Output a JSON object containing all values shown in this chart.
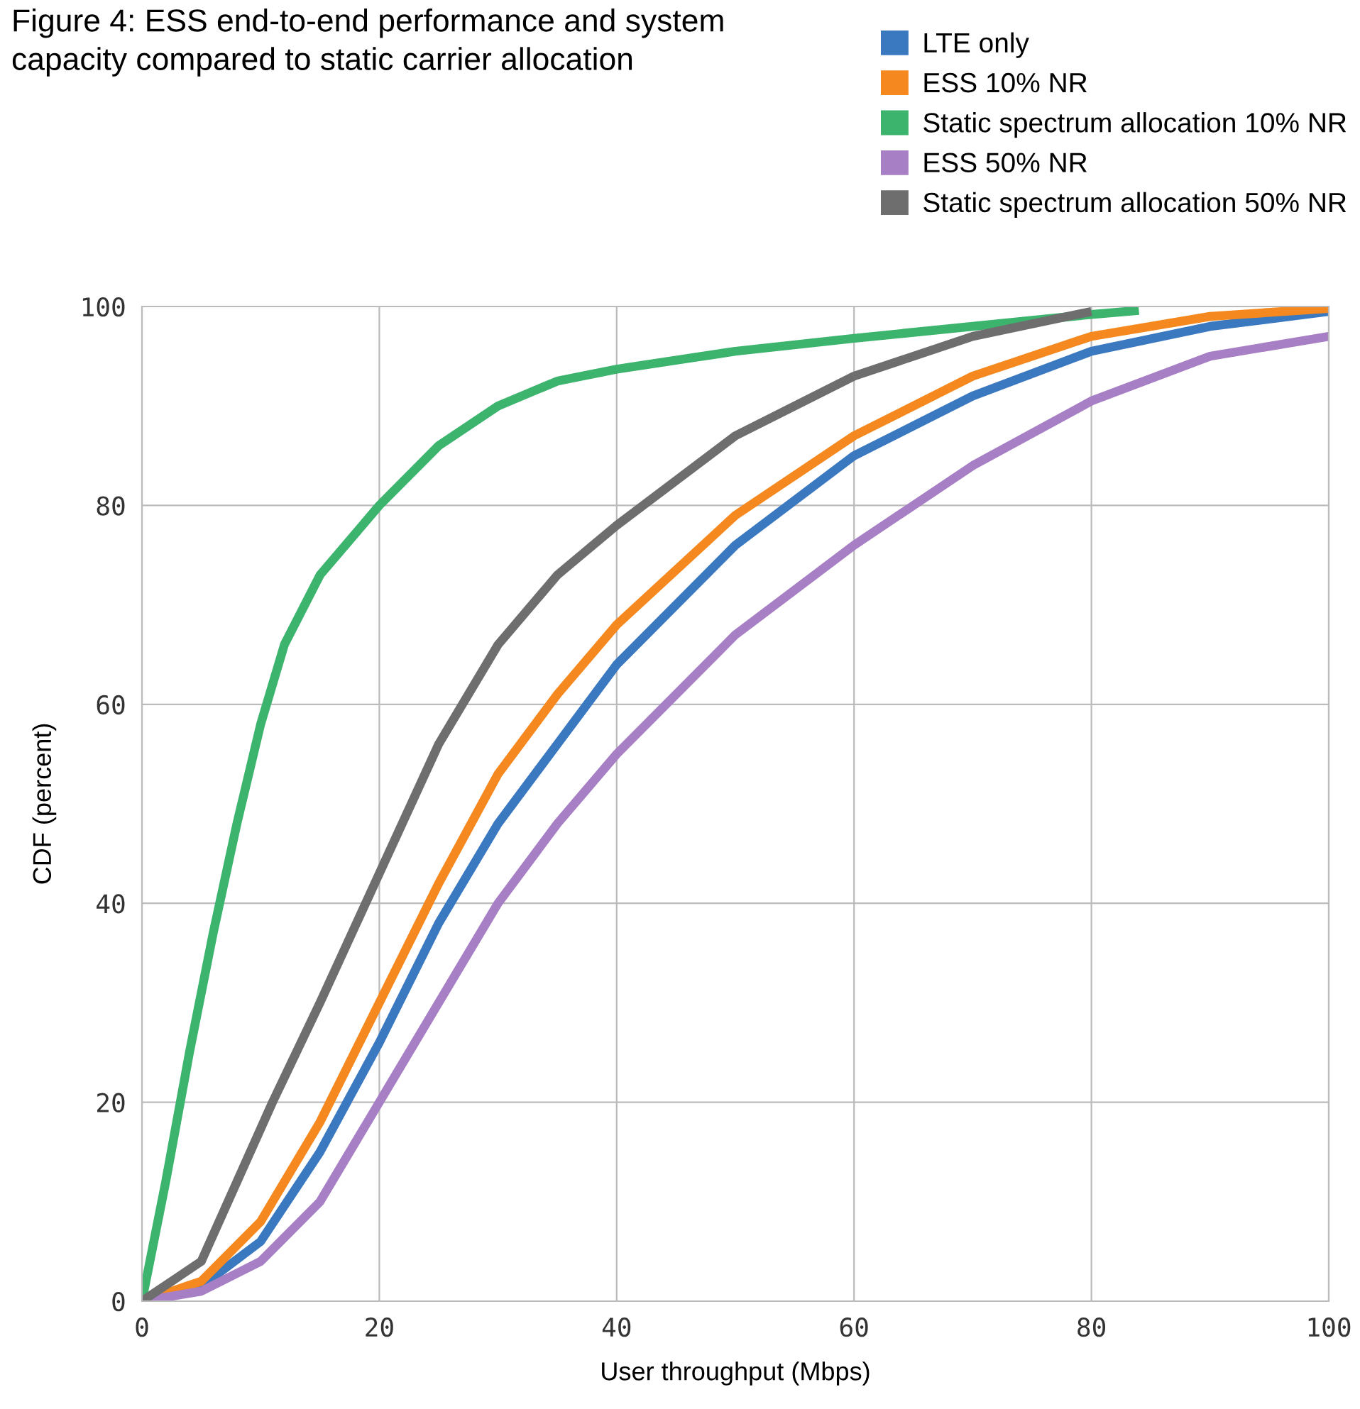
{
  "chart_data": {
    "type": "line",
    "title": "Figure 4: ESS end-to-end performance and system\ncapacity compared to static carrier allocation",
    "xlabel": "User throughput (Mbps)",
    "ylabel": "CDF (percent)",
    "xlim": [
      0,
      100
    ],
    "ylim": [
      0,
      100
    ],
    "xticks": [
      0,
      20,
      40,
      60,
      80,
      100
    ],
    "yticks": [
      0,
      20,
      40,
      60,
      80,
      100
    ],
    "grid": true,
    "legend": "top right",
    "line_style": "solid",
    "series": [
      {
        "name": "LTE only",
        "color": "#3a78c0",
        "x": [
          0,
          5,
          10,
          15,
          20,
          25,
          30,
          35,
          40,
          50,
          60,
          70,
          80,
          90,
          100
        ],
        "values": [
          0,
          1.5,
          6,
          15,
          26,
          38,
          48,
          56,
          64,
          76,
          85,
          91,
          95.5,
          98,
          99.5
        ]
      },
      {
        "name": "ESS 10% NR",
        "color": "#f5891f",
        "x": [
          0,
          5,
          10,
          15,
          20,
          25,
          30,
          35,
          40,
          50,
          60,
          70,
          80,
          90,
          100
        ],
        "values": [
          0,
          2,
          8,
          18,
          30,
          42,
          53,
          61,
          68,
          79,
          87,
          93,
          97,
          99,
          99.8
        ]
      },
      {
        "name": "Static spectrum allocation 10% NR",
        "color": "#3cb46e",
        "x": [
          0,
          2,
          4,
          6,
          8,
          10,
          12,
          15,
          20,
          25,
          30,
          35,
          40,
          50,
          60,
          70,
          80,
          84
        ],
        "values": [
          0,
          12,
          25,
          37,
          48,
          58,
          66,
          73,
          80,
          86,
          90,
          92.5,
          93.7,
          95.5,
          96.8,
          98,
          99.2,
          99.6
        ]
      },
      {
        "name": "ESS 50% NR",
        "color": "#a77fc4",
        "x": [
          0,
          5,
          10,
          15,
          20,
          25,
          30,
          35,
          40,
          50,
          60,
          70,
          80,
          90,
          100
        ],
        "values": [
          0,
          1,
          4,
          10,
          20,
          30,
          40,
          48,
          55,
          67,
          76,
          84,
          90.5,
          95,
          97
        ]
      },
      {
        "name": "Static spectrum allocation 50% NR",
        "color": "#6e6e6e",
        "x": [
          0,
          5,
          11,
          15,
          20,
          25,
          30,
          35,
          40,
          50,
          60,
          70,
          80
        ],
        "values": [
          0,
          4,
          20,
          30,
          43,
          56,
          66,
          73,
          78,
          87,
          93,
          97,
          99.5
        ]
      }
    ]
  }
}
